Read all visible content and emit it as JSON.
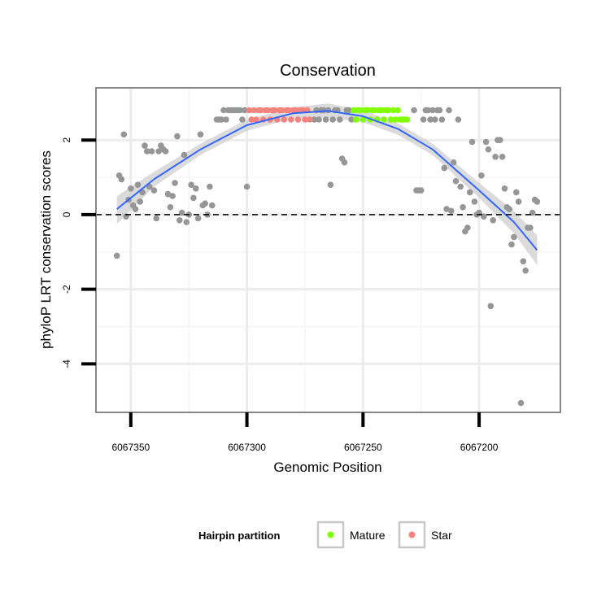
{
  "colors": {
    "background": "#ffffff",
    "panel_border": "#888888",
    "grid_major": "#ececec",
    "grid_minor": "#f6f6f6",
    "point_default": "#969696",
    "point_mature": "#7fff00",
    "point_star": "#f4837d",
    "smooth_line": "#3366ff",
    "ribbon": "#cfcfcf",
    "reference_line": "#000000"
  },
  "chart_data": {
    "type": "scatter",
    "title": "Conservation",
    "xlabel": "Genomic Position",
    "ylabel": "phyloP LRT conservation scores",
    "x_reversed": true,
    "xlim": [
      6067365,
      6067165
    ],
    "ylim": [
      -5.3,
      3.4
    ],
    "x_ticks": [
      6067350,
      6067300,
      6067250,
      6067200
    ],
    "y_ticks": [
      -4,
      -2,
      0,
      2
    ],
    "grid": true,
    "reference_line": {
      "y": 0,
      "style": "dashed"
    },
    "legend": {
      "title": "Hairpin partition",
      "placement": "bottom",
      "entries": [
        {
          "label": "Mature",
          "color": "#7fff00"
        },
        {
          "label": "Star",
          "color": "#f4837d"
        }
      ]
    },
    "smooth": {
      "x": [
        6067356,
        6067340,
        6067320,
        6067300,
        6067280,
        6067265,
        6067250,
        6067235,
        6067220,
        6067200,
        6067185,
        6067175
      ],
      "y": [
        0.15,
        0.95,
        1.75,
        2.4,
        2.72,
        2.78,
        2.64,
        2.3,
        1.75,
        0.65,
        -0.2,
        -0.95
      ],
      "se_upper": [
        0.5,
        1.15,
        1.9,
        2.55,
        2.88,
        2.98,
        2.8,
        2.45,
        1.9,
        0.85,
        0.1,
        -0.55
      ],
      "se_lower": [
        -0.25,
        0.75,
        1.6,
        2.25,
        2.58,
        2.6,
        2.48,
        2.14,
        1.6,
        0.45,
        -0.5,
        -1.35
      ]
    },
    "series": [
      {
        "group": "other",
        "points": [
          [
            6067356,
            -1.1
          ],
          [
            6067355,
            1.05
          ],
          [
            6067354,
            0.95
          ],
          [
            6067353,
            2.15
          ],
          [
            6067352,
            -0.05
          ],
          [
            6067351,
            0.4
          ],
          [
            6067350,
            0.7
          ],
          [
            6067349,
            0.25
          ],
          [
            6067348,
            0.15
          ],
          [
            6067347,
            0.8
          ],
          [
            6067346,
            0.35
          ],
          [
            6067345,
            0.6
          ],
          [
            6067344,
            1.85
          ],
          [
            6067343,
            1.7
          ],
          [
            6067342,
            0.75
          ],
          [
            6067341,
            1.7
          ],
          [
            6067340,
            0.65
          ],
          [
            6067339,
            -0.1
          ],
          [
            6067338,
            1.7
          ],
          [
            6067337,
            1.85
          ],
          [
            6067336,
            1.75
          ],
          [
            6067335,
            1.7
          ],
          [
            6067334,
            0.55
          ],
          [
            6067333,
            0.2
          ],
          [
            6067332,
            0.5
          ],
          [
            6067331,
            0.85
          ],
          [
            6067330,
            2.1
          ],
          [
            6067329,
            -0.15
          ],
          [
            6067328,
            0.05
          ],
          [
            6067327,
            1.6
          ],
          [
            6067326,
            -0.2
          ],
          [
            6067325,
            0.0
          ],
          [
            6067324,
            0.8
          ],
          [
            6067323,
            0.45
          ],
          [
            6067322,
            0.7
          ],
          [
            6067321,
            -0.1
          ],
          [
            6067320,
            2.15
          ],
          [
            6067319,
            0.25
          ],
          [
            6067318,
            0.3
          ],
          [
            6067317,
            0.0
          ],
          [
            6067316,
            0.75
          ],
          [
            6067315,
            0.25
          ],
          [
            6067313,
            2.55
          ],
          [
            6067312,
            2.55
          ],
          [
            6067311,
            2.55
          ],
          [
            6067310,
            2.8
          ],
          [
            6067309,
            2.55
          ],
          [
            6067308,
            2.8
          ],
          [
            6067307,
            2.8
          ],
          [
            6067306,
            2.8
          ],
          [
            6067305,
            2.8
          ],
          [
            6067304,
            2.8
          ],
          [
            6067303,
            2.8
          ],
          [
            6067302,
            2.55
          ],
          [
            6067301,
            2.8
          ],
          [
            6067300,
            0.75
          ],
          [
            6067271,
            2.55
          ],
          [
            6067270,
            2.8
          ],
          [
            6067269,
            2.55
          ],
          [
            6067268,
            2.8
          ],
          [
            6067267,
            2.8
          ],
          [
            6067266,
            2.55
          ],
          [
            6067265,
            2.8
          ],
          [
            6067264,
            0.8
          ],
          [
            6067263,
            2.55
          ],
          [
            6067262,
            2.8
          ],
          [
            6067261,
            2.8
          ],
          [
            6067260,
            2.55
          ],
          [
            6067259,
            1.5
          ],
          [
            6067258,
            1.4
          ],
          [
            6067257,
            2.8
          ],
          [
            6067256,
            2.8
          ],
          [
            6067255,
            2.55
          ],
          [
            6067228,
            2.8
          ],
          [
            6067227,
            0.65
          ],
          [
            6067226,
            0.65
          ],
          [
            6067225,
            0.65
          ],
          [
            6067224,
            2.55
          ],
          [
            6067223,
            2.8
          ],
          [
            6067222,
            2.8
          ],
          [
            6067221,
            2.55
          ],
          [
            6067220,
            2.8
          ],
          [
            6067219,
            2.55
          ],
          [
            6067218,
            2.8
          ],
          [
            6067217,
            2.8
          ],
          [
            6067216,
            2.55
          ],
          [
            6067215,
            1.25
          ],
          [
            6067214,
            0.15
          ],
          [
            6067213,
            2.8
          ],
          [
            6067212,
            0.1
          ],
          [
            6067211,
            1.4
          ],
          [
            6067210,
            0.9
          ],
          [
            6067209,
            2.55
          ],
          [
            6067208,
            0.75
          ],
          [
            6067207,
            0.2
          ],
          [
            6067206,
            -0.45
          ],
          [
            6067205,
            -0.35
          ],
          [
            6067204,
            0.6
          ],
          [
            6067203,
            1.95
          ],
          [
            6067202,
            0.35
          ],
          [
            6067201,
            0.0
          ],
          [
            6067200,
            0.05
          ],
          [
            6067199,
            1.05
          ],
          [
            6067198,
            -0.05
          ],
          [
            6067197,
            1.95
          ],
          [
            6067196,
            1.75
          ],
          [
            6067195,
            -2.45
          ],
          [
            6067194,
            -0.15
          ],
          [
            6067193,
            1.55
          ],
          [
            6067192,
            2.0
          ],
          [
            6067191,
            2.0
          ],
          [
            6067190,
            1.55
          ],
          [
            6067189,
            0.7
          ],
          [
            6067188,
            0.2
          ],
          [
            6067187,
            0.15
          ],
          [
            6067186,
            -0.8
          ],
          [
            6067185,
            -0.6
          ],
          [
            6067184,
            0.6
          ],
          [
            6067183,
            0.35
          ],
          [
            6067182,
            -5.05
          ],
          [
            6067181,
            -1.25
          ],
          [
            6067180,
            -1.5
          ],
          [
            6067179,
            -0.35
          ],
          [
            6067178,
            -0.35
          ],
          [
            6067177,
            0.05
          ],
          [
            6067176,
            0.4
          ],
          [
            6067175,
            0.35
          ]
        ]
      },
      {
        "group": "Star",
        "points": [
          [
            6067299,
            2.8
          ],
          [
            6067298,
            2.55
          ],
          [
            6067297,
            2.8
          ],
          [
            6067296,
            2.55
          ],
          [
            6067295,
            2.8
          ],
          [
            6067294,
            2.8
          ],
          [
            6067293,
            2.55
          ],
          [
            6067292,
            2.8
          ],
          [
            6067291,
            2.8
          ],
          [
            6067290,
            2.55
          ],
          [
            6067289,
            2.8
          ],
          [
            6067288,
            2.8
          ],
          [
            6067287,
            2.55
          ],
          [
            6067286,
            2.8
          ],
          [
            6067285,
            2.8
          ],
          [
            6067284,
            2.55
          ],
          [
            6067283,
            2.8
          ],
          [
            6067282,
            2.8
          ],
          [
            6067281,
            2.55
          ],
          [
            6067280,
            2.8
          ],
          [
            6067279,
            2.8
          ],
          [
            6067278,
            2.55
          ],
          [
            6067277,
            2.8
          ],
          [
            6067276,
            2.8
          ],
          [
            6067275,
            2.55
          ],
          [
            6067274,
            2.8
          ],
          [
            6067273,
            2.55
          ]
        ]
      },
      {
        "group": "Mature",
        "points": [
          [
            6067254,
            2.8
          ],
          [
            6067253,
            2.55
          ],
          [
            6067252,
            2.8
          ],
          [
            6067251,
            2.8
          ],
          [
            6067250,
            2.55
          ],
          [
            6067249,
            2.8
          ],
          [
            6067248,
            2.8
          ],
          [
            6067247,
            2.55
          ],
          [
            6067246,
            2.8
          ],
          [
            6067245,
            2.8
          ],
          [
            6067244,
            2.55
          ],
          [
            6067243,
            2.8
          ],
          [
            6067242,
            2.8
          ],
          [
            6067241,
            2.55
          ],
          [
            6067240,
            2.8
          ],
          [
            6067239,
            2.8
          ],
          [
            6067238,
            2.55
          ],
          [
            6067237,
            2.8
          ],
          [
            6067236,
            2.55
          ],
          [
            6067235,
            2.8
          ],
          [
            6067234,
            2.55
          ],
          [
            6067233,
            2.55
          ],
          [
            6067232,
            2.55
          ],
          [
            6067231,
            2.55
          ]
        ]
      }
    ]
  }
}
